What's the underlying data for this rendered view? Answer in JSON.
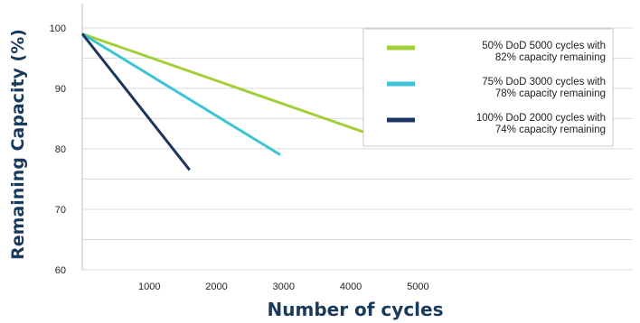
{
  "chart_data": {
    "type": "line",
    "xlabel": "Number of cycles",
    "ylabel": "Remaining Capacity (%)",
    "xlim": [
      0,
      8200
    ],
    "ylim": [
      60,
      104
    ],
    "x_ticks": [
      1000,
      2000,
      3000,
      4000,
      5000
    ],
    "y_ticks": [
      60,
      70,
      80,
      90,
      100
    ],
    "y_gridlines": [
      60,
      65,
      70,
      75,
      80,
      85,
      90,
      95,
      100,
      105
    ],
    "grid": true,
    "legend_position": "top-right",
    "series": [
      {
        "name": "50% DoD  5000 cycles with 82% capacity remaining",
        "legend_lines": [
          "50% DoD  5000 cycles with",
          "82% capacity remaining"
        ],
        "color": "#a3cf3a",
        "x": [
          0,
          4650
        ],
        "y": [
          99,
          81
        ]
      },
      {
        "name": "75% DoD  3000 cycles with 78% capacity remaining",
        "legend_lines": [
          "75% DoD  3000 cycles with",
          "78% capacity remaining"
        ],
        "color": "#3cc3d6",
        "x": [
          0,
          2950
        ],
        "y": [
          99,
          79
        ]
      },
      {
        "name": "100% DoD  2000 cycles with 74% capacity remaining",
        "legend_lines": [
          "100% DoD  2000 cycles with",
          "74% capacity remaining"
        ],
        "color": "#1c3560",
        "x": [
          0,
          1600
        ],
        "y": [
          99,
          76.5
        ]
      }
    ]
  }
}
